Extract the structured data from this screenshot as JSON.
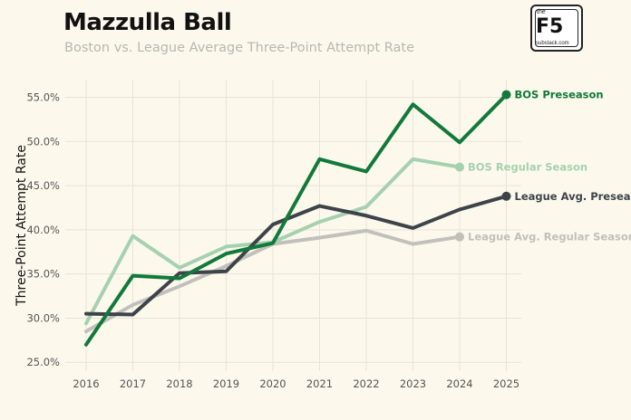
{
  "header": {
    "title": "Mazzulla Ball",
    "subtitle": "Boston vs. League Average Three-Point Attempt Rate"
  },
  "logo": {
    "small": "the",
    "big": "F5",
    "url": "substack.com"
  },
  "chart_data": {
    "type": "line",
    "title": "Mazzulla Ball",
    "subtitle": "Boston vs. League Average Three-Point Attempt Rate",
    "xlabel": "",
    "ylabel": "Three-Point Attempt Rate",
    "x": [
      2016,
      2017,
      2018,
      2019,
      2020,
      2021,
      2022,
      2023,
      2024,
      2025
    ],
    "x_tick_labels": [
      "2016",
      "2017",
      "2018",
      "2019",
      "2020",
      "2021",
      "2022",
      "2023",
      "2024",
      "2025"
    ],
    "y_ticks": [
      25,
      30,
      35,
      40,
      45,
      50,
      55
    ],
    "y_tick_labels": [
      "25.0%",
      "30.0%",
      "35.0%",
      "40.0%",
      "45.0%",
      "50.0%",
      "55.0%"
    ],
    "ylim": [
      24,
      57
    ],
    "grid": true,
    "legend": "end-of-line labels",
    "series": [
      {
        "name": "League Avg. Regular Season",
        "color": "#c2c0bb",
        "values": [
          28.5,
          31.5,
          33.6,
          35.9,
          38.4,
          39.1,
          39.9,
          38.4,
          39.2,
          null
        ]
      },
      {
        "name": "BOS Regular Season",
        "color": "#a6d1b0",
        "values": [
          29.4,
          39.3,
          35.7,
          38.1,
          38.6,
          40.9,
          42.6,
          48.0,
          47.1,
          null
        ]
      },
      {
        "name": "League Avg. Preseason",
        "color": "#3d4449",
        "values": [
          30.5,
          30.4,
          35.1,
          35.3,
          40.6,
          42.7,
          41.6,
          40.2,
          42.3,
          43.8
        ]
      },
      {
        "name": "BOS Preseason",
        "color": "#117a3a",
        "values": [
          27.0,
          34.8,
          34.5,
          37.3,
          38.5,
          48.0,
          46.6,
          54.2,
          49.9,
          55.3
        ]
      }
    ]
  }
}
